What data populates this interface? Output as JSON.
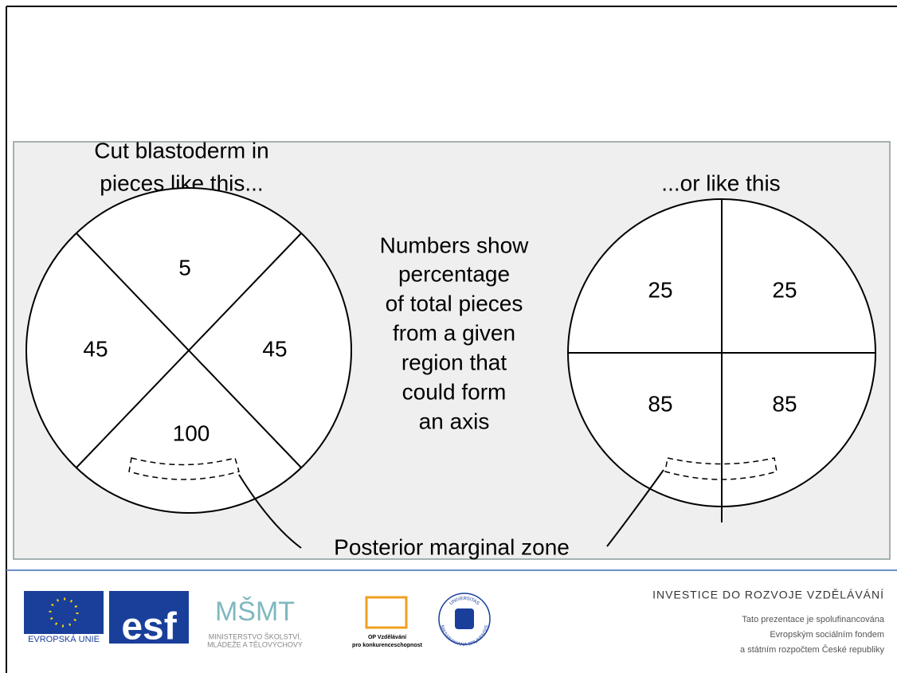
{
  "left_panel": {
    "title_lines": [
      "Cut blastoderm in",
      "pieces like this..."
    ],
    "regions": [
      "5",
      "45",
      "45",
      "100"
    ]
  },
  "center_text": [
    "Numbers show",
    "percentage",
    "of total pieces",
    "from a given",
    "region that",
    "could form",
    "an axis"
  ],
  "right_panel": {
    "title": "...or like this",
    "regions": [
      "25",
      "25",
      "85",
      "85"
    ]
  },
  "zone_label": "Posterior marginal zone",
  "footer": {
    "logos": {
      "eu": "EVROPSKÁ UNIE",
      "esf": "esf",
      "msmt": "MŠMT",
      "msmt_lines": [
        "MINISTERSTVO ŠKOLSTVÍ,",
        "MLÁDEŽE A TĚLOVÝCHOVY"
      ],
      "op_lines": [
        "OP Vzdělávání",
        "pro konkurenceschopnost"
      ],
      "university_lines": [
        "UNIVERSITAS",
        "MASARYKIANA BRUNENSIS"
      ]
    },
    "heading": "INVESTICE DO ROZVOJE VZDĚLÁVÁNÍ",
    "lines": [
      "Tato prezentace je spolufinancována",
      "Evropským sociálním fondem",
      "a státním rozpočtem České republiky"
    ]
  }
}
